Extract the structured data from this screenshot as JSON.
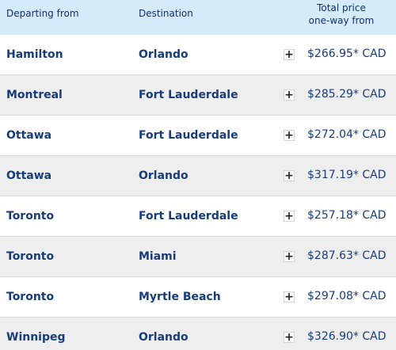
{
  "header": {
    "departing_label": "Departing from",
    "destination_label": "Destination",
    "price_label_line1": "Total price",
    "price_label_line2": "one-way from"
  },
  "rows": [
    {
      "from": "Hamilton",
      "to": "Orlando",
      "price": "$266.95* CAD"
    },
    {
      "from": "Montreal",
      "to": "Fort Lauderdale",
      "price": "$285.29* CAD"
    },
    {
      "from": "Ottawa",
      "to": "Fort Lauderdale",
      "price": "$272.04* CAD"
    },
    {
      "from": "Ottawa",
      "to": "Orlando",
      "price": "$317.19* CAD"
    },
    {
      "from": "Toronto",
      "to": "Fort Lauderdale",
      "price": "$257.18* CAD"
    },
    {
      "from": "Toronto",
      "to": "Miami",
      "price": "$287.63* CAD"
    },
    {
      "from": "Toronto",
      "to": "Myrtle Beach",
      "price": "$297.08* CAD"
    },
    {
      "from": "Winnipeg",
      "to": "Orlando",
      "price": "$326.90* CAD"
    }
  ],
  "icons": {
    "expand": "plus-icon"
  },
  "colors": {
    "header_bg": "#d6ebf9",
    "text_primary": "#173c7b",
    "row_alt_bg": "#eeeeee"
  }
}
